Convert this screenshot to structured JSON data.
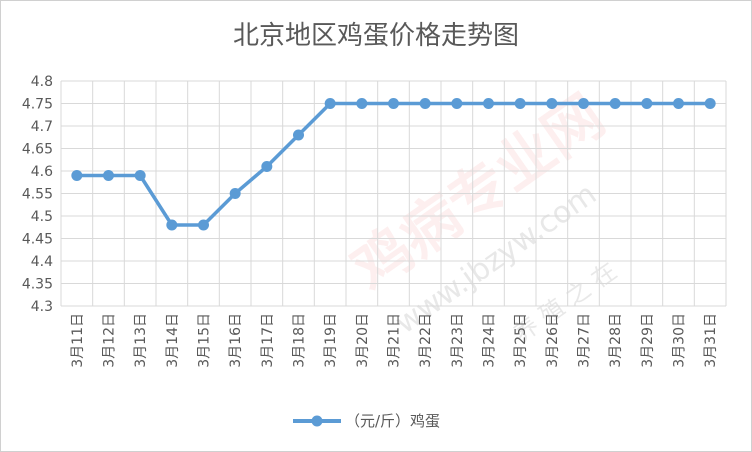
{
  "chart_data": {
    "type": "line",
    "title": "北京地区鸡蛋价格走势图",
    "categories": [
      "3月11日",
      "3月12日",
      "3月13日",
      "3月14日",
      "3月15日",
      "3月16日",
      "3月17日",
      "3月18日",
      "3月19日",
      "3月20日",
      "3月21日",
      "3月22日",
      "3月23日",
      "3月24日",
      "3月25日",
      "3月26日",
      "3月27日",
      "3月28日",
      "3月29日",
      "3月30日",
      "3月31日"
    ],
    "series": [
      {
        "name": "（元/斤）鸡蛋",
        "values": [
          4.59,
          4.59,
          4.59,
          4.48,
          4.48,
          4.55,
          4.61,
          4.68,
          4.75,
          4.75,
          4.75,
          4.75,
          4.75,
          4.75,
          4.75,
          4.75,
          4.75,
          4.75,
          4.75,
          4.75,
          4.75
        ]
      }
    ],
    "ylim": [
      4.3,
      4.8
    ],
    "yticks": [
      "4.3",
      "4.35",
      "4.4",
      "4.45",
      "4.5",
      "4.55",
      "4.6",
      "4.65",
      "4.7",
      "4.75",
      "4.8"
    ],
    "xlabel": "",
    "ylabel": "",
    "grid": true,
    "legend_position": "bottom",
    "line_color": "#5b9bd5",
    "grid_color": "#d9d9d9"
  },
  "watermark": {
    "main": "鸡病专业网",
    "url": "www.jbzyw.com",
    "sub": "养 殖 之 在"
  }
}
